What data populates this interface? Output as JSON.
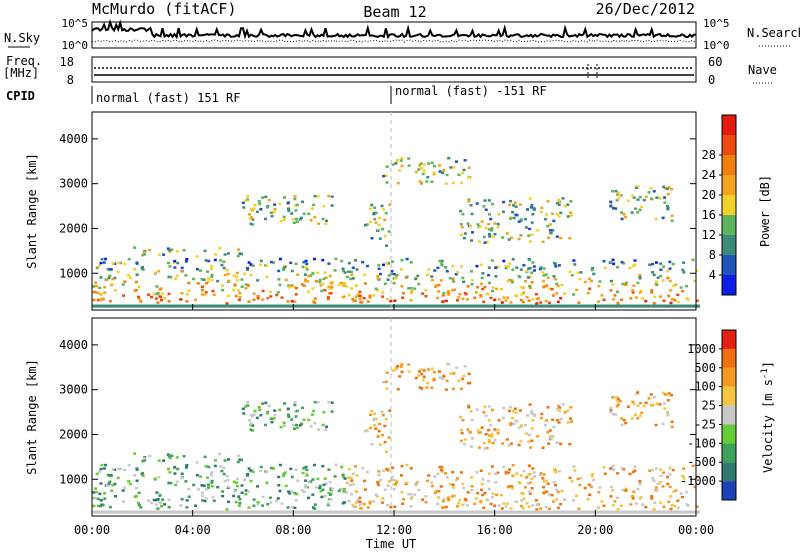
{
  "header": {
    "station": "McMurdo (fitACF)",
    "beam": "Beam 12",
    "date": "26/Dec/2012"
  },
  "status_panels": {
    "nsky_label": "N.Sky",
    "nsearch_label": "N.Search",
    "noise_ticks_left": [
      "10^5",
      "10^0"
    ],
    "noise_ticks_right": [
      "10^5",
      "10^0"
    ],
    "freq_label": "Freq.",
    "freq_unit": "[MHz]",
    "freq_ticks": [
      "18",
      "8"
    ],
    "nave_label": "Nave",
    "nave_ticks": [
      "60",
      "0"
    ],
    "cpid_label": "CPID",
    "cpid_segments": [
      "normal (fast) 151 RF",
      "normal (fast) -151 RF"
    ]
  },
  "chart_data": [
    {
      "type": "heatmap",
      "title": "",
      "xlabel": "",
      "ylabel": "Slant Range [km]",
      "x_ticks": [
        "00:00",
        "04:00",
        "08:00",
        "12:00",
        "16:00",
        "20:00",
        "00:00"
      ],
      "xlim_hours": [
        0,
        24
      ],
      "ylim_km": [
        180,
        4600
      ],
      "y_ticks": [
        1000,
        2000,
        3000,
        4000
      ],
      "grid": false,
      "colorbar": {
        "label": "Power [dB]",
        "tick_labels": [
          "4",
          "8",
          "12",
          "16",
          "20",
          "24",
          "28"
        ],
        "colors": [
          "#0a1ee8",
          "#1f54b8",
          "#3c8a7a",
          "#5fb55e",
          "#f2d22a",
          "#f5a31a",
          "#f07f10",
          "#ee4a10",
          "#e51a0e"
        ]
      },
      "echo_regions_hours_km": [
        {
          "t0": 0.0,
          "t1": 24.0,
          "r0": 350,
          "r1": 1350
        },
        {
          "t0": 1.5,
          "t1": 6.0,
          "r0": 1400,
          "r1": 1600
        },
        {
          "t0": 5.8,
          "t1": 9.5,
          "r0": 2100,
          "r1": 2800
        },
        {
          "t0": 10.8,
          "t1": 11.8,
          "r0": 1600,
          "r1": 2600
        },
        {
          "t0": 11.5,
          "t1": 15.0,
          "r0": 3000,
          "r1": 3600
        },
        {
          "t0": 14.5,
          "t1": 19.0,
          "r0": 1700,
          "r1": 2700
        },
        {
          "t0": 20.5,
          "t1": 23.0,
          "r0": 2200,
          "r1": 3000
        }
      ]
    },
    {
      "type": "heatmap",
      "title": "",
      "xlabel": "Time UT",
      "ylabel": "Slant Range [km]",
      "x_ticks": [
        "00:00",
        "04:00",
        "08:00",
        "12:00",
        "16:00",
        "20:00",
        "00:00"
      ],
      "xlim_hours": [
        0,
        24
      ],
      "ylim_km": [
        180,
        4600
      ],
      "y_ticks": [
        1000,
        2000,
        3000,
        4000
      ],
      "grid": false,
      "colorbar": {
        "label": "Velocity [m s^-1]",
        "tick_labels": [
          "1000",
          "500",
          "100",
          "25",
          "-25",
          "-100",
          "-500",
          "-1000"
        ],
        "colors": [
          "#1d3fb8",
          "#2e7a6e",
          "#3fa25a",
          "#66cc33",
          "#c8c8c8",
          "#f5c542",
          "#f59a20",
          "#f07010",
          "#e52010"
        ]
      },
      "echo_regions_hours_km": [
        {
          "t0": 0.0,
          "t1": 24.0,
          "r0": 350,
          "r1": 1350
        },
        {
          "t0": 1.5,
          "t1": 6.0,
          "r0": 1400,
          "r1": 1600
        },
        {
          "t0": 5.8,
          "t1": 9.5,
          "r0": 2100,
          "r1": 2800
        },
        {
          "t0": 10.8,
          "t1": 11.8,
          "r0": 1600,
          "r1": 2600
        },
        {
          "t0": 11.5,
          "t1": 15.0,
          "r0": 3000,
          "r1": 3600
        },
        {
          "t0": 14.5,
          "t1": 19.0,
          "r0": 1700,
          "r1": 2700
        },
        {
          "t0": 20.5,
          "t1": 23.0,
          "r0": 2200,
          "r1": 3000
        }
      ]
    }
  ]
}
